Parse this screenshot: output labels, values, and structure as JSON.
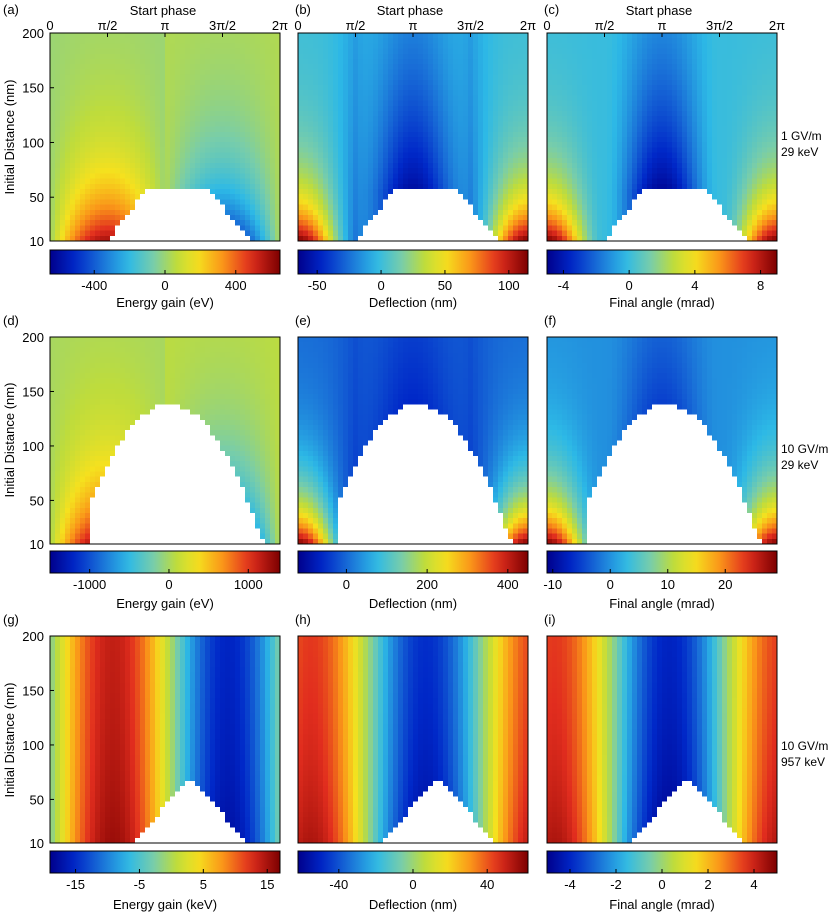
{
  "figure": {
    "x_axis_title": "Start phase",
    "y_axis_title": "Initial Distance (nm)",
    "x_ticks": [
      "0",
      "π/2",
      "π",
      "3π/2",
      "2π"
    ],
    "y_ticks": [
      "200",
      "150",
      "100",
      "50",
      "10"
    ]
  },
  "rows": [
    {
      "field": "1 GV/m",
      "energy": "29 keV"
    },
    {
      "field": "10 GV/m",
      "energy": "29 keV"
    },
    {
      "field": "10 GV/m",
      "energy": "957 keV"
    }
  ],
  "chart_data": [
    {
      "type": "heatmap",
      "panel": "(a)",
      "quantity": "energy",
      "colorbar_label": "Energy gain (eV)",
      "colorbar_ticks": [
        "-400",
        "0",
        "400"
      ],
      "colorbar_tick_values": [
        -400,
        0,
        400
      ],
      "range": [
        -650,
        650
      ],
      "xlim": [
        0,
        6.2832
      ],
      "ylim": [
        10,
        200
      ]
    },
    {
      "type": "heatmap",
      "panel": "(b)",
      "quantity": "deflection",
      "colorbar_label": "Deflection (nm)",
      "colorbar_ticks": [
        "-50",
        "0",
        "50",
        "100"
      ],
      "colorbar_tick_values": [
        -50,
        0,
        50,
        100
      ],
      "range": [
        -65,
        115
      ],
      "xlim": [
        0,
        6.2832
      ],
      "ylim": [
        10,
        200
      ]
    },
    {
      "type": "heatmap",
      "panel": "(c)",
      "quantity": "angle",
      "colorbar_label": "Final angle (mrad)",
      "colorbar_ticks": [
        "-4",
        "0",
        "4",
        "8"
      ],
      "colorbar_tick_values": [
        -4,
        0,
        4,
        8
      ],
      "range": [
        -5,
        9
      ],
      "xlim": [
        0,
        6.2832
      ],
      "ylim": [
        10,
        200
      ]
    },
    {
      "type": "heatmap",
      "panel": "(d)",
      "quantity": "energy",
      "colorbar_label": "Energy gain (eV)",
      "colorbar_ticks": [
        "-1000",
        "0",
        "1000"
      ],
      "colorbar_tick_values": [
        -1000,
        0,
        1000
      ],
      "range": [
        -1500,
        1400
      ],
      "xlim": [
        0,
        6.2832
      ],
      "ylim": [
        10,
        200
      ]
    },
    {
      "type": "heatmap",
      "panel": "(e)",
      "quantity": "deflection",
      "colorbar_label": "Deflection (nm)",
      "colorbar_ticks": [
        "0",
        "200",
        "400"
      ],
      "colorbar_tick_values": [
        0,
        200,
        400
      ],
      "range": [
        -120,
        450
      ],
      "xlim": [
        0,
        6.2832
      ],
      "ylim": [
        10,
        200
      ]
    },
    {
      "type": "heatmap",
      "panel": "(f)",
      "quantity": "angle",
      "colorbar_label": "Final angle (mrad)",
      "colorbar_ticks": [
        "-10",
        "0",
        "10",
        "20"
      ],
      "colorbar_tick_values": [
        -10,
        0,
        10,
        20
      ],
      "range": [
        -11,
        29
      ],
      "xlim": [
        0,
        6.2832
      ],
      "ylim": [
        10,
        200
      ]
    },
    {
      "type": "heatmap",
      "panel": "(g)",
      "quantity": "energy957",
      "colorbar_label": "Energy gain (keV)",
      "colorbar_ticks": [
        "-15",
        "-5",
        "5",
        "15"
      ],
      "colorbar_tick_values": [
        -15,
        -5,
        5,
        15
      ],
      "range": [
        -19,
        17
      ],
      "xlim": [
        0,
        6.2832
      ],
      "ylim": [
        10,
        200
      ]
    },
    {
      "type": "heatmap",
      "panel": "(h)",
      "quantity": "deflection957",
      "colorbar_label": "Deflection (nm)",
      "colorbar_ticks": [
        "-40",
        "0",
        "40"
      ],
      "colorbar_tick_values": [
        -40,
        0,
        40
      ],
      "range": [
        -62,
        62
      ],
      "xlim": [
        0,
        6.2832
      ],
      "ylim": [
        10,
        200
      ]
    },
    {
      "type": "heatmap",
      "panel": "(i)",
      "quantity": "angle957",
      "colorbar_label": "Final angle (mrad)",
      "colorbar_ticks": [
        "-4",
        "-2",
        "0",
        "2",
        "4"
      ],
      "colorbar_tick_values": [
        -4,
        -2,
        0,
        2,
        4
      ],
      "range": [
        -5,
        5
      ],
      "xlim": [
        0,
        6.2832
      ],
      "ylim": [
        10,
        200
      ]
    }
  ]
}
